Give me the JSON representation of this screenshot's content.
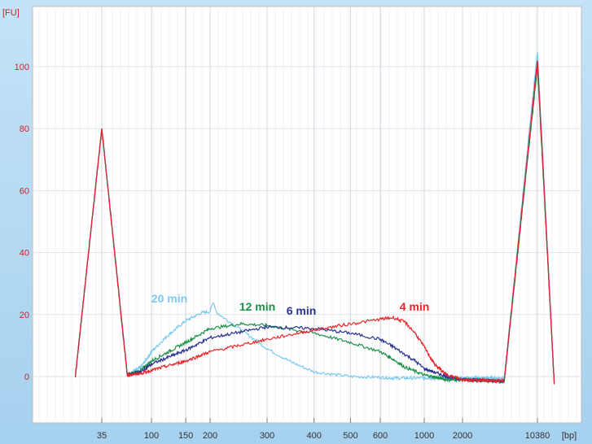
{
  "chart_data": {
    "type": "line",
    "y_unit": "[FU]",
    "x_unit": "[bp]",
    "y_ticks": [
      0,
      20,
      40,
      60,
      80,
      100
    ],
    "ylim": [
      -8,
      112
    ],
    "x_ticks": [
      "35",
      "100",
      "150",
      "200",
      "300",
      "400",
      "500",
      "600",
      "1000",
      "2000",
      "10380"
    ],
    "x_scale": "log",
    "grid": true,
    "colors": {
      "4 min": "#e8252b",
      "6 min": "#2b3391",
      "12 min": "#1a9146",
      "20 min": "#7cc9ef"
    },
    "series": [
      {
        "name": "20 min",
        "points": [
          [
            20,
            0
          ],
          [
            35,
            80
          ],
          [
            60,
            0.5
          ],
          [
            80,
            3
          ],
          [
            100,
            8
          ],
          [
            120,
            13
          ],
          [
            150,
            18
          ],
          [
            180,
            20.5
          ],
          [
            200,
            21
          ],
          [
            205,
            24
          ],
          [
            210,
            20.5
          ],
          [
            250,
            15
          ],
          [
            300,
            9
          ],
          [
            350,
            4.5
          ],
          [
            400,
            1.5
          ],
          [
            500,
            0
          ],
          [
            700,
            -0.5
          ],
          [
            1000,
            -0.5
          ],
          [
            2000,
            -0.5
          ],
          [
            5000,
            -0.5
          ],
          [
            10380,
            105
          ],
          [
            15000,
            -2
          ]
        ]
      },
      {
        "name": "12 min",
        "points": [
          [
            20,
            0
          ],
          [
            35,
            80
          ],
          [
            60,
            0.5
          ],
          [
            80,
            2
          ],
          [
            100,
            5
          ],
          [
            150,
            11
          ],
          [
            200,
            15.5
          ],
          [
            250,
            17
          ],
          [
            300,
            16.5
          ],
          [
            400,
            14
          ],
          [
            500,
            11
          ],
          [
            600,
            8
          ],
          [
            700,
            5.5
          ],
          [
            800,
            3
          ],
          [
            1000,
            0.5
          ],
          [
            1500,
            -1
          ],
          [
            2000,
            -1
          ],
          [
            5000,
            -1.5
          ],
          [
            10380,
            100
          ],
          [
            15000,
            -2
          ]
        ]
      },
      {
        "name": "6 min",
        "points": [
          [
            20,
            0
          ],
          [
            35,
            80
          ],
          [
            60,
            0.5
          ],
          [
            80,
            1.5
          ],
          [
            100,
            4
          ],
          [
            150,
            8.5
          ],
          [
            200,
            12.5
          ],
          [
            300,
            16
          ],
          [
            400,
            15.5
          ],
          [
            500,
            14
          ],
          [
            600,
            12
          ],
          [
            700,
            9.5
          ],
          [
            900,
            5
          ],
          [
            1000,
            2.5
          ],
          [
            1500,
            0
          ],
          [
            2000,
            -1
          ],
          [
            5000,
            -1.5
          ],
          [
            10380,
            102
          ],
          [
            15000,
            -2
          ]
        ]
      },
      {
        "name": "4 min",
        "points": [
          [
            20,
            0
          ],
          [
            35,
            80
          ],
          [
            60,
            0.5
          ],
          [
            80,
            1
          ],
          [
            100,
            2
          ],
          [
            150,
            5
          ],
          [
            200,
            8
          ],
          [
            300,
            12
          ],
          [
            400,
            15
          ],
          [
            500,
            17
          ],
          [
            600,
            18.5
          ],
          [
            700,
            19
          ],
          [
            800,
            17.5
          ],
          [
            900,
            14
          ],
          [
            1000,
            9.5
          ],
          [
            1200,
            4
          ],
          [
            1500,
            0.5
          ],
          [
            2000,
            -1
          ],
          [
            5000,
            -1.5
          ],
          [
            10380,
            102
          ],
          [
            15000,
            -2
          ]
        ]
      }
    ],
    "annotations": [
      {
        "text": "20 min",
        "series": "20 min"
      },
      {
        "text": "12 min",
        "series": "12 min"
      },
      {
        "text": "6 min",
        "series": "6 min"
      },
      {
        "text": "4 min",
        "series": "4 min"
      }
    ]
  }
}
